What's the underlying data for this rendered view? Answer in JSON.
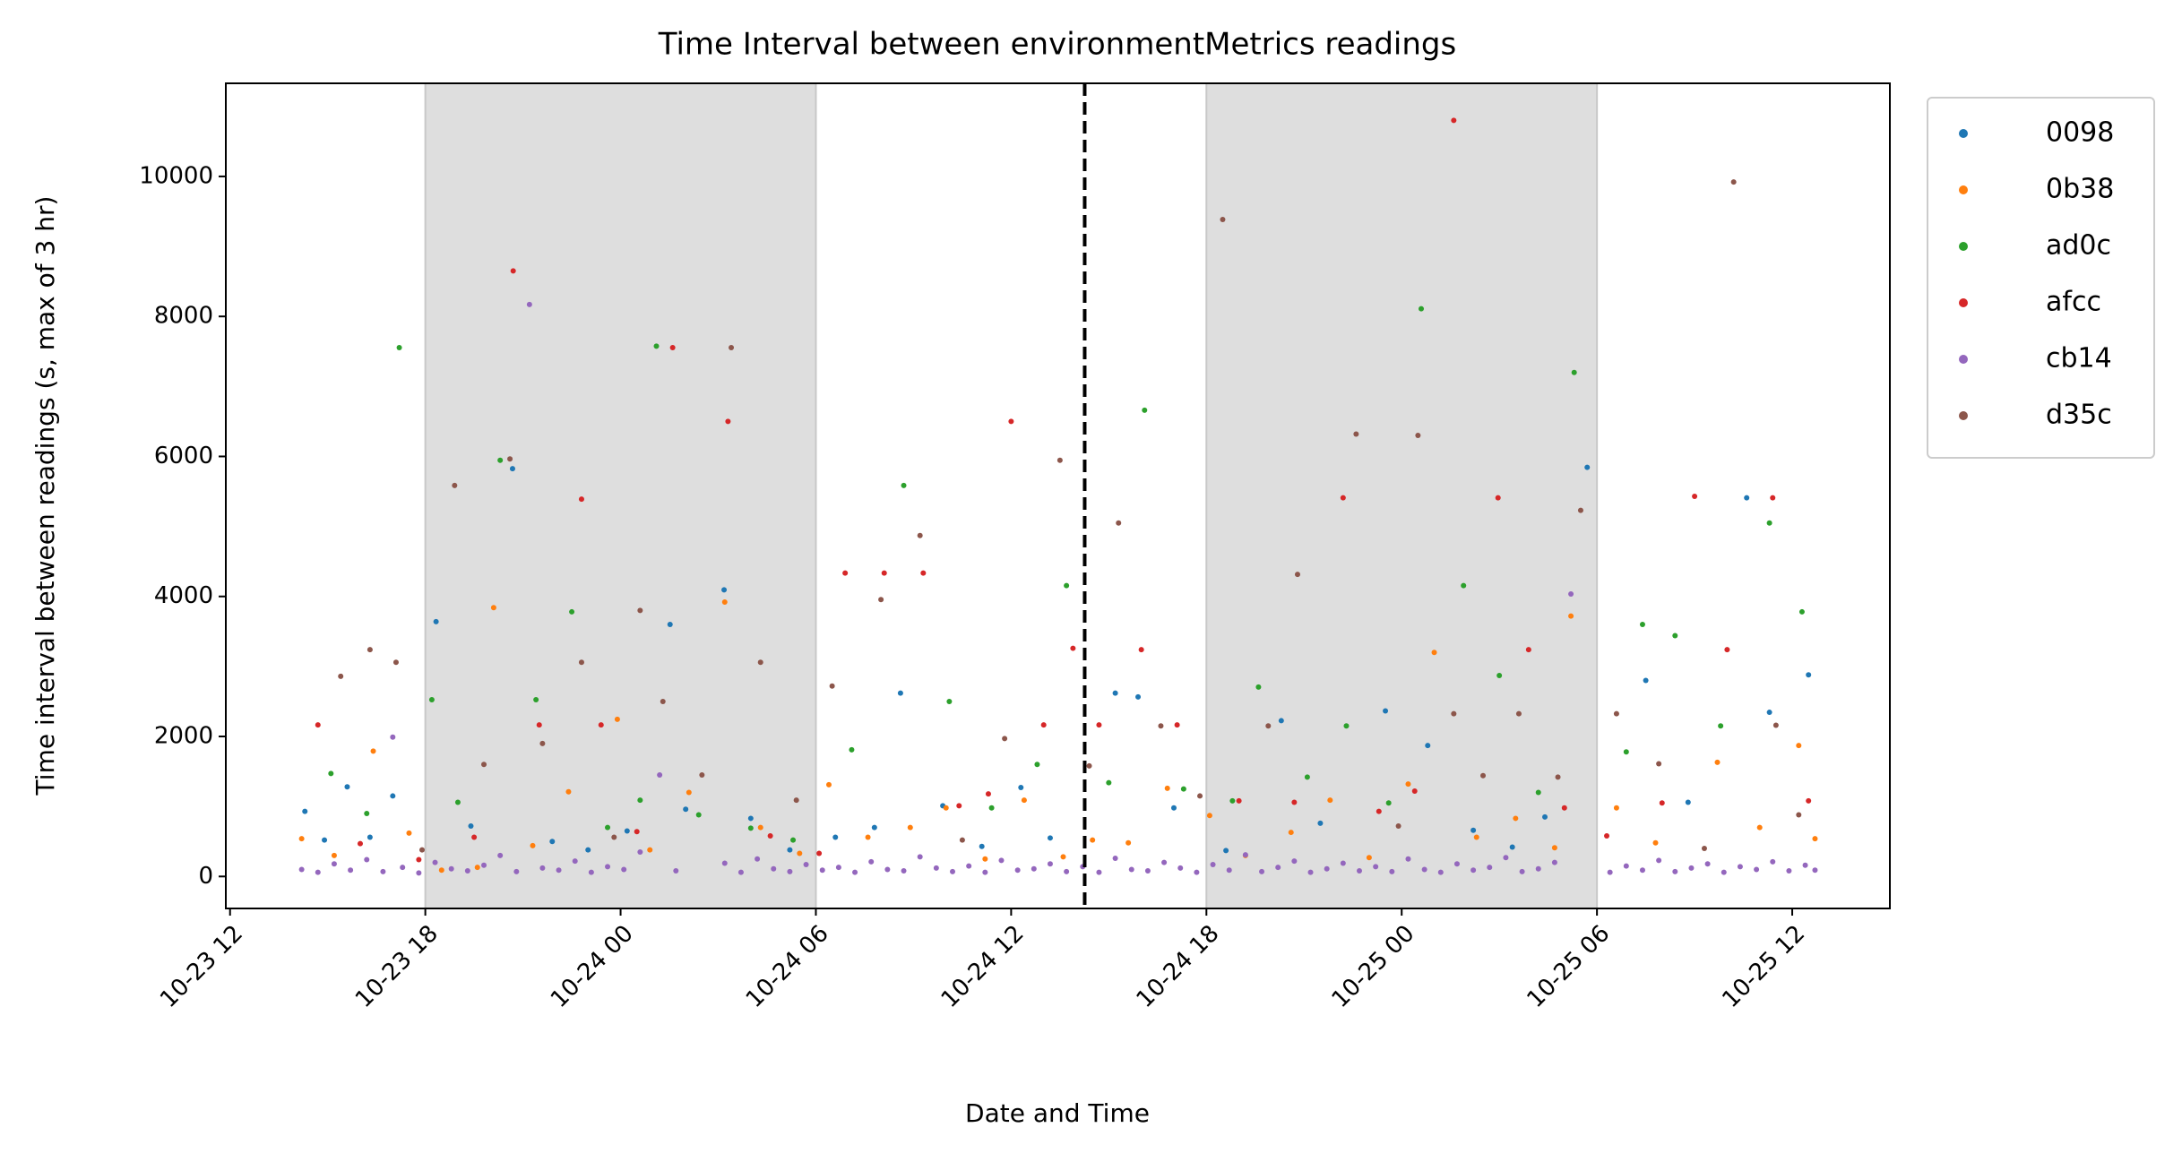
{
  "chart_data": {
    "type": "scatter",
    "title": "Time Interval between environmentMetrics readings",
    "x_label": "Date and Time",
    "y_label": "Time interval between readings (s, max of 3 hr)",
    "xlim": [
      11.87,
      63.0
    ],
    "ylim": [
      -457,
      11330
    ],
    "xticks": [
      {
        "value": 12,
        "label": "10-23 12"
      },
      {
        "value": 18,
        "label": "10-23 18"
      },
      {
        "value": 24,
        "label": "10-24 00"
      },
      {
        "value": 30,
        "label": "10-24 06"
      },
      {
        "value": 36,
        "label": "10-24 12"
      },
      {
        "value": 42,
        "label": "10-24 18"
      },
      {
        "value": 48,
        "label": "10-25 00"
      },
      {
        "value": 54,
        "label": "10-25 06"
      },
      {
        "value": 60,
        "label": "10-25 12"
      }
    ],
    "yticks": [
      0,
      2000,
      4000,
      6000,
      8000,
      10000
    ],
    "shaded_spans": [
      [
        18,
        30
      ],
      [
        42,
        54
      ]
    ],
    "vline": 38.26,
    "legend": "outside upper right",
    "series": [
      {
        "name": "0098",
        "color": "#1f77b4",
        "x": [
          14.3,
          14.9,
          15.6,
          16.3,
          17.0,
          18.33,
          19.4,
          20.68,
          21.9,
          23.0,
          24.2,
          25.52,
          26.0,
          27.18,
          28.0,
          29.2,
          30.6,
          31.8,
          32.6,
          33.9,
          35.1,
          36.3,
          37.2,
          39.2,
          39.9,
          41.0,
          42.6,
          44.3,
          45.5,
          47.5,
          48.8,
          50.2,
          51.4,
          52.4,
          53.7,
          55.5,
          56.8,
          58.6,
          59.3,
          60.5
        ],
        "values": [
          930,
          520,
          1280,
          560,
          1150,
          3640,
          720,
          5825,
          500,
          380,
          650,
          3600,
          960,
          4095,
          830,
          380,
          560,
          700,
          2620,
          1010,
          430,
          1270,
          550,
          2620,
          2565,
          980,
          370,
          2225,
          760,
          2365,
          1870,
          660,
          420,
          850,
          5845,
          2800,
          1060,
          5410,
          2345,
          2880
        ]
      },
      {
        "name": "0b38",
        "color": "#ff7f0e",
        "x": [
          14.2,
          15.2,
          16.4,
          17.5,
          18.5,
          19.6,
          20.1,
          21.3,
          22.4,
          23.9,
          24.9,
          26.1,
          27.2,
          28.3,
          29.5,
          30.4,
          31.6,
          32.9,
          34.0,
          35.2,
          36.4,
          37.6,
          38.5,
          39.6,
          40.8,
          42.1,
          43.2,
          44.6,
          45.8,
          47.0,
          48.2,
          49.0,
          50.3,
          51.5,
          52.7,
          53.2,
          54.6,
          55.8,
          57.7,
          59.0,
          60.2,
          60.7
        ],
        "values": [
          540,
          300,
          1790,
          620,
          90,
          130,
          3840,
          440,
          1210,
          2245,
          380,
          1200,
          3920,
          700,
          330,
          1310,
          560,
          700,
          980,
          250,
          1090,
          280,
          520,
          480,
          1260,
          870,
          300,
          630,
          1090,
          270,
          1320,
          3200,
          560,
          830,
          410,
          3720,
          980,
          480,
          1630,
          700,
          1870,
          540
        ]
      },
      {
        "name": "ad0c",
        "color": "#2ca02c",
        "x": [
          15.1,
          16.2,
          17.2,
          18.2,
          19.0,
          20.3,
          21.4,
          22.5,
          23.6,
          24.6,
          25.1,
          26.4,
          28.0,
          29.3,
          31.1,
          32.7,
          34.1,
          35.4,
          36.8,
          37.7,
          39.0,
          40.1,
          41.3,
          42.8,
          43.6,
          45.1,
          46.3,
          47.6,
          48.6,
          49.9,
          51.0,
          52.2,
          53.3,
          54.9,
          55.4,
          56.4,
          57.8,
          59.3,
          60.3
        ],
        "values": [
          1470,
          900,
          7555,
          2525,
          1060,
          5945,
          2525,
          3780,
          700,
          1090,
          7575,
          880,
          690,
          520,
          1810,
          5585,
          2500,
          980,
          1600,
          4155,
          1340,
          6660,
          1250,
          1080,
          2705,
          1420,
          2150,
          1050,
          8110,
          4155,
          2870,
          1200,
          7200,
          1780,
          3600,
          3440,
          2150,
          5050,
          3780
        ]
      },
      {
        "name": "afcc",
        "color": "#d62728",
        "x": [
          14.7,
          16.0,
          17.8,
          19.5,
          20.7,
          21.5,
          22.8,
          23.4,
          24.5,
          25.6,
          27.3,
          28.6,
          30.1,
          30.9,
          32.1,
          33.3,
          34.4,
          35.3,
          36.0,
          37.0,
          37.9,
          38.7,
          40.0,
          41.1,
          43.0,
          44.7,
          46.2,
          47.3,
          48.4,
          49.6,
          50.96,
          51.9,
          53.0,
          54.3,
          56.0,
          57.0,
          58.0,
          59.4,
          60.5
        ],
        "values": [
          2165,
          470,
          240,
          560,
          8650,
          2165,
          5390,
          2165,
          640,
          7555,
          6500,
          580,
          330,
          4335,
          4335,
          4335,
          1010,
          1180,
          6500,
          2165,
          3260,
          2165,
          3240,
          2165,
          1080,
          1060,
          5410,
          930,
          1220,
          10800,
          5410,
          3240,
          980,
          580,
          1050,
          5430,
          3240,
          5410,
          1080
        ]
      },
      {
        "name": "cb14",
        "color": "#9467bd",
        "x": [
          14.2,
          14.7,
          15.2,
          15.7,
          16.2,
          16.7,
          17.0,
          17.3,
          17.8,
          18.3,
          18.8,
          19.3,
          19.8,
          20.3,
          20.8,
          21.2,
          21.6,
          22.1,
          22.6,
          23.1,
          23.6,
          24.1,
          24.6,
          25.2,
          25.7,
          27.2,
          27.7,
          28.2,
          28.7,
          29.2,
          29.7,
          30.2,
          30.7,
          31.2,
          31.7,
          32.2,
          32.7,
          33.2,
          33.7,
          34.2,
          34.7,
          35.2,
          35.7,
          36.2,
          36.7,
          37.2,
          37.7,
          38.2,
          38.7,
          39.2,
          39.7,
          40.2,
          40.7,
          41.2,
          41.7,
          42.2,
          42.7,
          43.2,
          43.7,
          44.2,
          44.7,
          45.2,
          45.7,
          46.2,
          46.7,
          47.2,
          47.7,
          48.2,
          48.7,
          49.2,
          49.7,
          50.2,
          50.7,
          51.2,
          51.7,
          52.2,
          52.7,
          53.2,
          54.4,
          54.9,
          55.4,
          55.9,
          56.4,
          56.9,
          57.4,
          57.9,
          58.4,
          58.9,
          59.4,
          59.9,
          60.4,
          60.7
        ],
        "values": [
          100,
          60,
          180,
          90,
          240,
          70,
          1990,
          130,
          50,
          200,
          110,
          80,
          160,
          300,
          70,
          8170,
          120,
          90,
          220,
          60,
          140,
          100,
          350,
          1450,
          80,
          190,
          60,
          250,
          110,
          70,
          170,
          90,
          130,
          60,
          210,
          100,
          80,
          280,
          120,
          70,
          150,
          60,
          230,
          90,
          110,
          180,
          70,
          140,
          60,
          260,
          100,
          80,
          200,
          120,
          60,
          170,
          90,
          310,
          70,
          130,
          220,
          60,
          110,
          190,
          80,
          140,
          70,
          250,
          100,
          60,
          180,
          90,
          130,
          270,
          70,
          110,
          200,
          4035,
          60,
          150,
          90,
          230,
          70,
          120,
          180,
          60,
          140,
          100,
          210,
          80,
          160,
          90
        ]
      },
      {
        "name": "d35c",
        "color": "#8c564b",
        "x": [
          15.4,
          16.3,
          17.1,
          17.9,
          18.9,
          19.8,
          20.6,
          21.6,
          22.8,
          23.8,
          24.6,
          25.3,
          26.5,
          27.4,
          28.3,
          29.4,
          30.5,
          32.0,
          33.2,
          34.5,
          35.8,
          37.5,
          38.4,
          39.3,
          40.6,
          41.8,
          42.5,
          43.9,
          44.8,
          46.6,
          47.9,
          48.5,
          49.6,
          50.5,
          51.6,
          52.8,
          53.5,
          54.6,
          55.9,
          57.3,
          58.2,
          59.5,
          60.2
        ],
        "values": [
          2860,
          3240,
          3060,
          380,
          5585,
          1600,
          5965,
          1900,
          3060,
          560,
          3800,
          2500,
          1450,
          7555,
          3060,
          1090,
          2720,
          3955,
          4870,
          520,
          1970,
          5945,
          1580,
          5050,
          2150,
          1150,
          9385,
          2150,
          4315,
          6320,
          720,
          6300,
          2325,
          1440,
          2325,
          1420,
          5230,
          2325,
          1610,
          400,
          9920,
          2160,
          880
        ]
      }
    ]
  }
}
